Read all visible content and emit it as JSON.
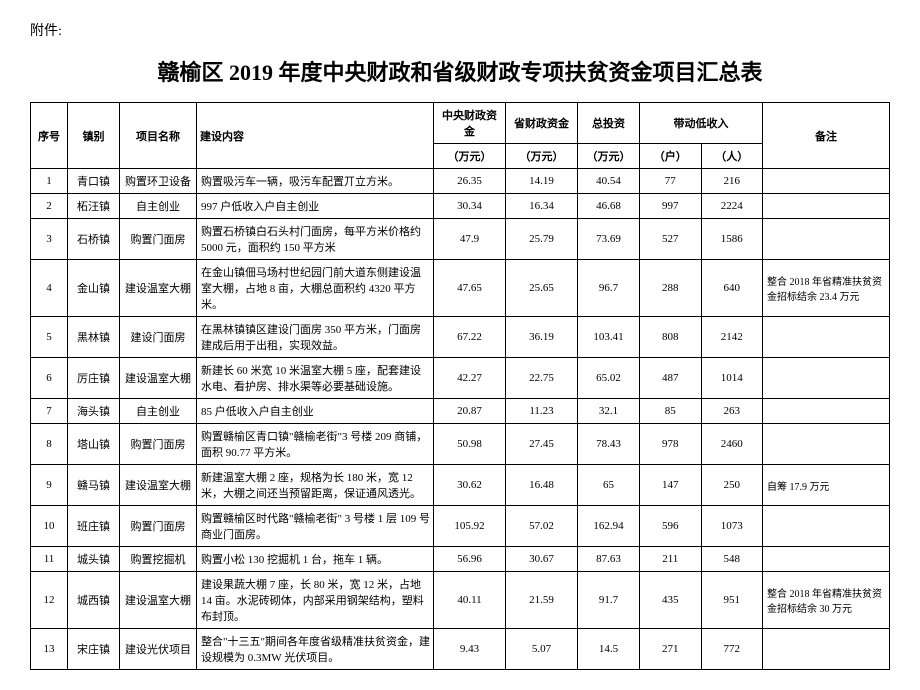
{
  "attachment_label": "附件:",
  "title": "赣榆区 2019 年度中央财政和省级财政专项扶贫资金项目汇总表",
  "headers": {
    "seq": "序号",
    "town": "镇别",
    "project": "项目名称",
    "content": "建设内容",
    "central_fund": "中央财政资金",
    "provincial_fund": "省财政资金",
    "total_invest": "总投资",
    "driven_low_income": "带动低收入",
    "note": "备注",
    "unit_wan": "（万元）",
    "unit_hu": "（户）",
    "unit_ren": "（人）"
  },
  "rows": [
    {
      "seq": "1",
      "town": "青口镇",
      "project": "购置环卫设备",
      "content": "购置吸污车一辆，吸污车配置丌立方米。",
      "central": "26.35",
      "provincial": "14.19",
      "total": "40.54",
      "hu": "77",
      "ren": "216",
      "note": ""
    },
    {
      "seq": "2",
      "town": "柘汪镇",
      "project": "自主创业",
      "content": "997 户低收入户自主创业",
      "central": "30.34",
      "provincial": "16.34",
      "total": "46.68",
      "hu": "997",
      "ren": "2224",
      "note": ""
    },
    {
      "seq": "3",
      "town": "石桥镇",
      "project": "购置门面房",
      "content": "购置石桥镇白石头村门面房，每平方米价格约 5000 元，面积约 150 平方米",
      "central": "47.9",
      "provincial": "25.79",
      "total": "73.69",
      "hu": "527",
      "ren": "1586",
      "note": ""
    },
    {
      "seq": "4",
      "town": "金山镇",
      "project": "建设温室大棚",
      "content": "在金山镇佃马场村世纪园门前大道东侧建设温室大棚，占地 8 亩，大棚总面积约 4320 平方米。",
      "central": "47.65",
      "provincial": "25.65",
      "total": "96.7",
      "hu": "288",
      "ren": "640",
      "note": "整合 2018 年省精准扶贫资金招标结余 23.4 万元"
    },
    {
      "seq": "5",
      "town": "黑林镇",
      "project": "建设门面房",
      "content": "在黑林镇镇区建设门面房 350 平方米，门面房建成后用于出租，实现效益。",
      "central": "67.22",
      "provincial": "36.19",
      "total": "103.41",
      "hu": "808",
      "ren": "2142",
      "note": ""
    },
    {
      "seq": "6",
      "town": "厉庄镇",
      "project": "建设温室大棚",
      "content": "新建长 60 米宽 10 米温室大棚 5 座，配套建设水电、看护房、排水渠等必要基础设施。",
      "central": "42.27",
      "provincial": "22.75",
      "total": "65.02",
      "hu": "487",
      "ren": "1014",
      "note": ""
    },
    {
      "seq": "7",
      "town": "海头镇",
      "project": "自主创业",
      "content": "85 户低收入户自主创业",
      "central": "20.87",
      "provincial": "11.23",
      "total": "32.1",
      "hu": "85",
      "ren": "263",
      "note": ""
    },
    {
      "seq": "8",
      "town": "塔山镇",
      "project": "购置门面房",
      "content": "购置赣榆区青口镇\"赣榆老街\"3 号楼 209 商铺，面积 90.77 平方米。",
      "central": "50.98",
      "provincial": "27.45",
      "total": "78.43",
      "hu": "978",
      "ren": "2460",
      "note": ""
    },
    {
      "seq": "9",
      "town": "赣马镇",
      "project": "建设温室大棚",
      "content": "新建温室大棚 2 座，规格为长 180 米，宽 12 米，大棚之间还当预留距离，保证通风透光。",
      "central": "30.62",
      "provincial": "16.48",
      "total": "65",
      "hu": "147",
      "ren": "250",
      "note": "自筹 17.9 万元"
    },
    {
      "seq": "10",
      "town": "班庄镇",
      "project": "购置门面房",
      "content": "购置赣榆区时代路\"赣榆老街\" 3 号楼 1 层 109 号商业门面房。",
      "central": "105.92",
      "provincial": "57.02",
      "total": "162.94",
      "hu": "596",
      "ren": "1073",
      "note": ""
    },
    {
      "seq": "11",
      "town": "城头镇",
      "project": "购置挖掘机",
      "content": "购置小松 130 挖掘机 1 台，拖车 1 辆。",
      "central": "56.96",
      "provincial": "30.67",
      "total": "87.63",
      "hu": "211",
      "ren": "548",
      "note": ""
    },
    {
      "seq": "12",
      "town": "城西镇",
      "project": "建设温室大棚",
      "content": "建设果蔬大棚 7 座，长 80 米，宽 12 米，占地 14 亩。水泥砖砌体，内部采用钢架结构，塑料布封顶。",
      "central": "40.11",
      "provincial": "21.59",
      "total": "91.7",
      "hu": "435",
      "ren": "951",
      "note": "整合 2018 年省精准扶贫资金招标结余 30 万元"
    },
    {
      "seq": "13",
      "town": "宋庄镇",
      "project": "建设光伏项目",
      "content": "整合\"十三五\"期间各年度省级精准扶贫资金，建设规模为 0.3MW 光伏项目。",
      "central": "9.43",
      "provincial": "5.07",
      "total": "14.5",
      "hu": "271",
      "ren": "772",
      "note": ""
    }
  ]
}
